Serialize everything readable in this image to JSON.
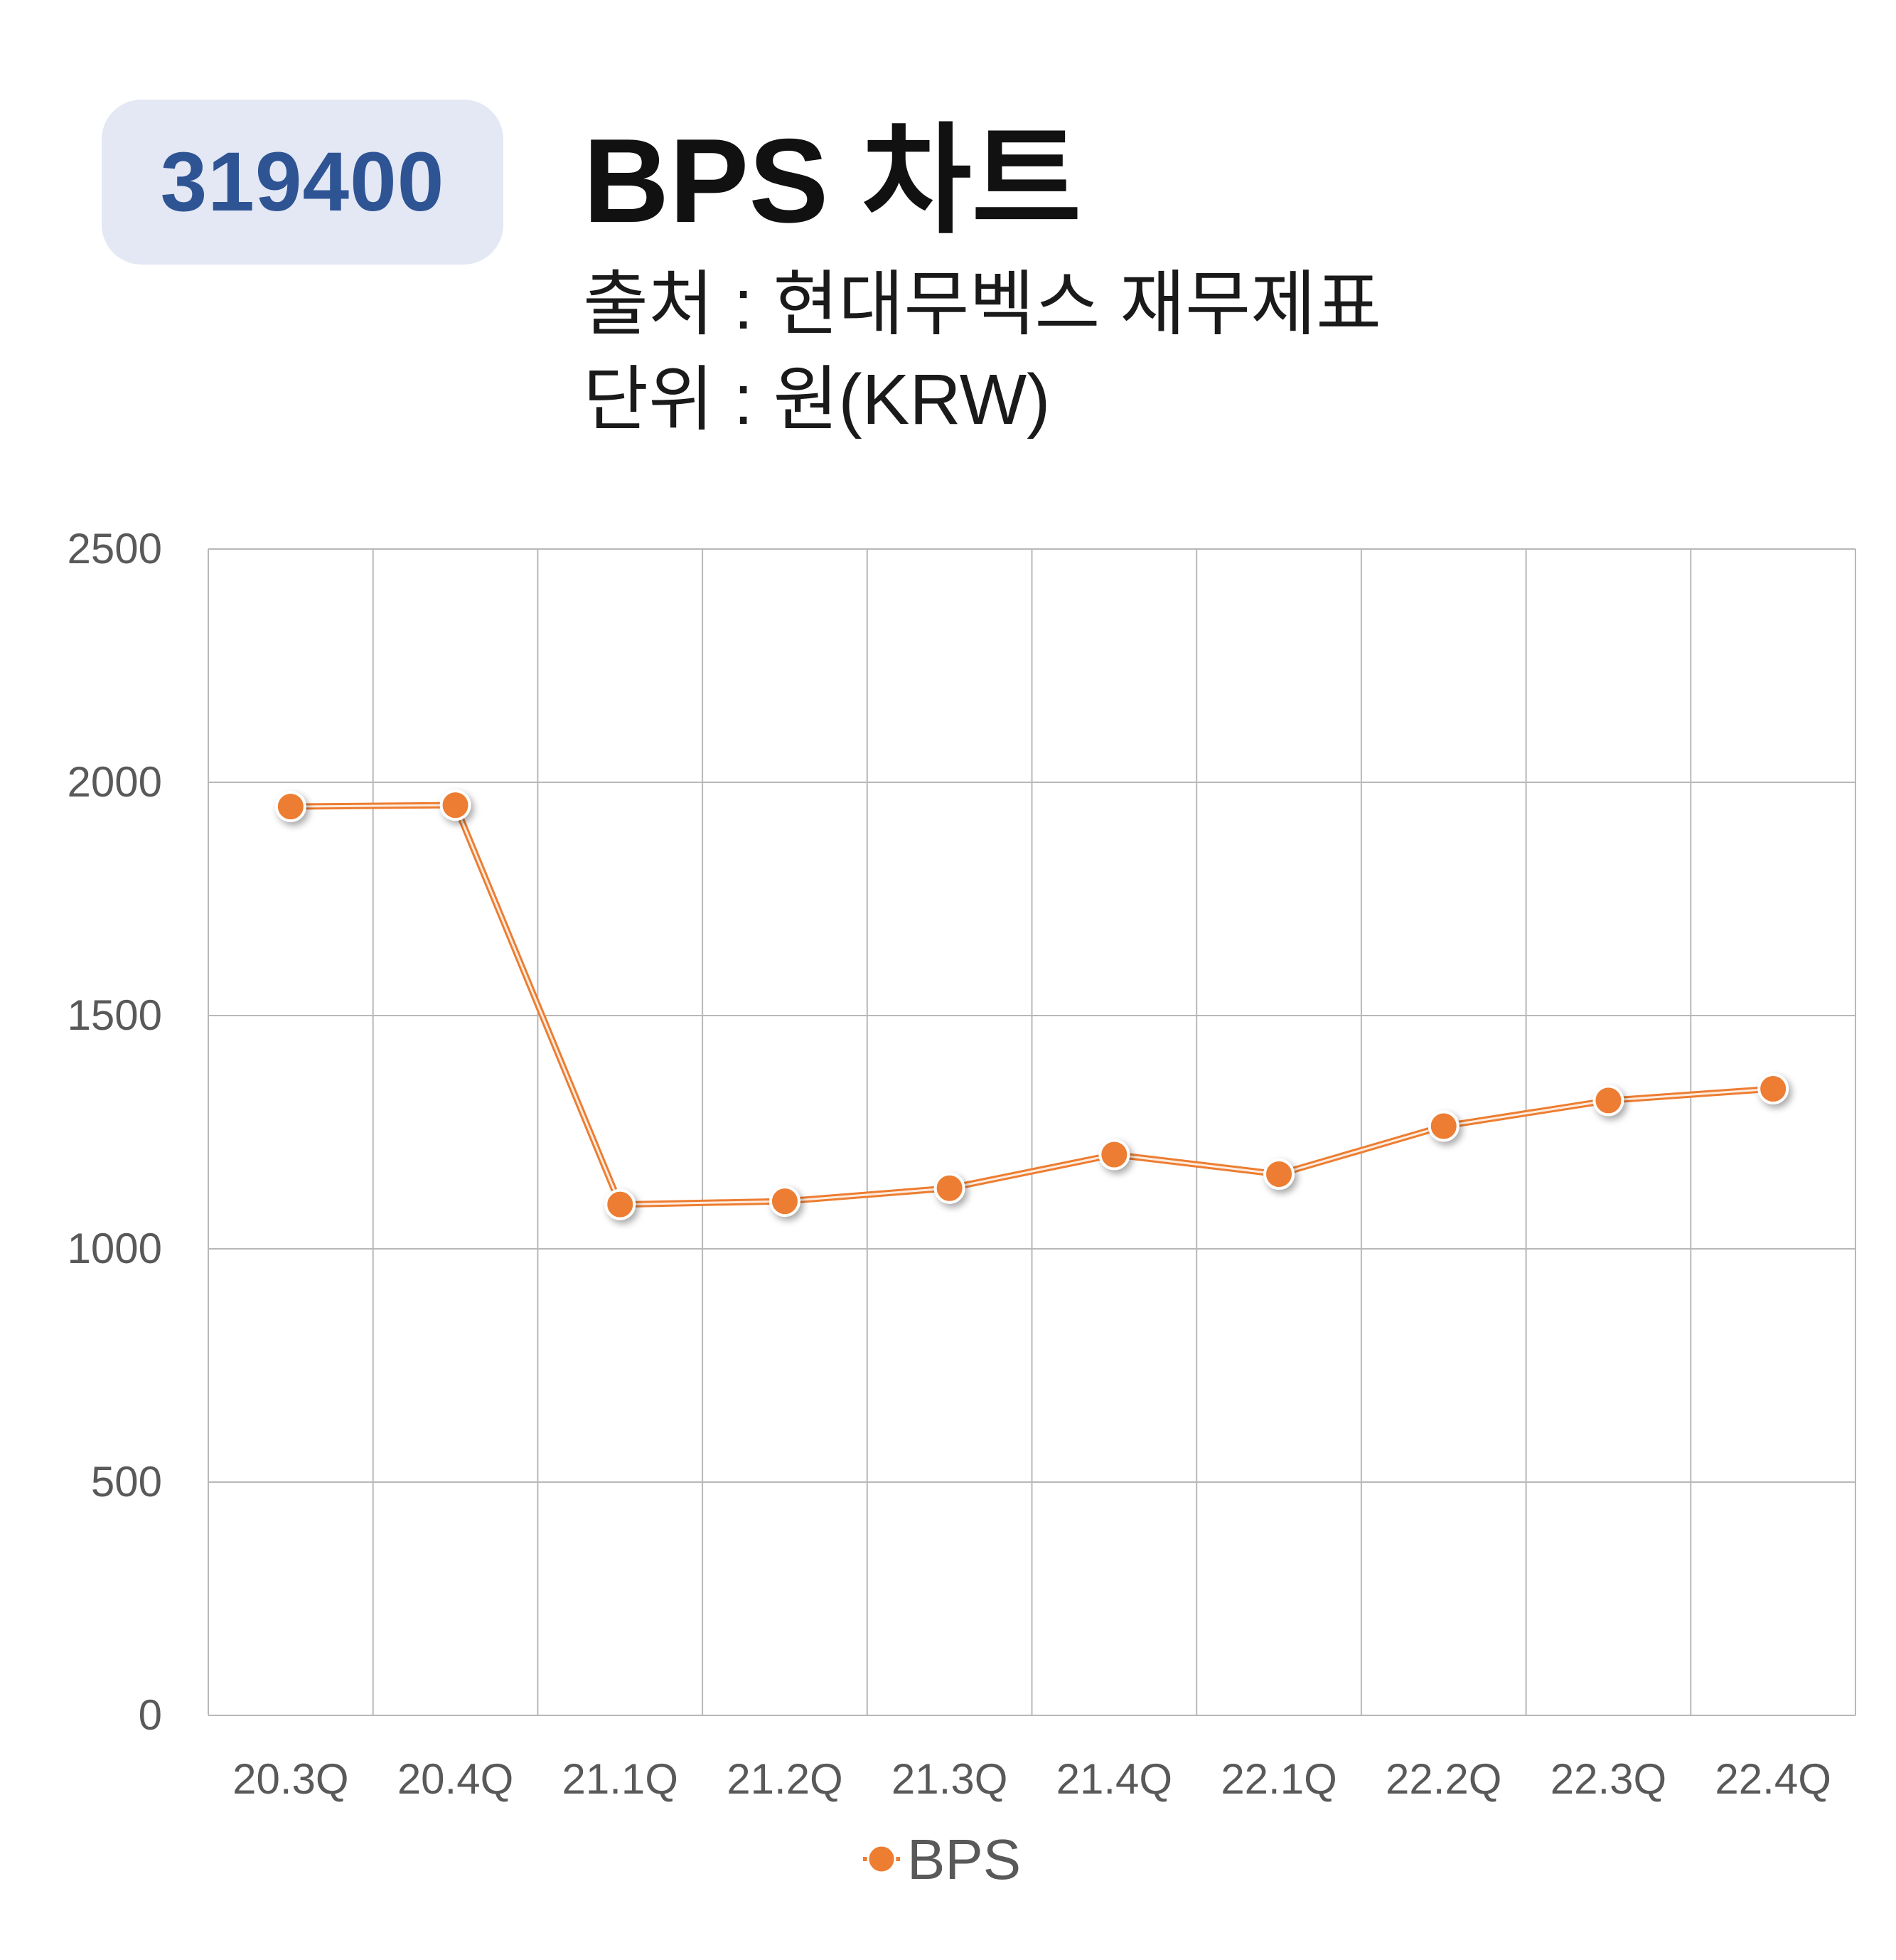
{
  "header": {
    "code": "319400",
    "title": "BPS 차트",
    "source": "출처 : 현대무벡스 재무제표",
    "unit": "단위 : 원(KRW)"
  },
  "colors": {
    "badge_bg": "#e3e8f4",
    "badge_text": "#2e5494",
    "series": "#ed7d31",
    "grid": "#b8b8b8"
  },
  "chart_data": {
    "type": "line",
    "categories": [
      "20.3Q",
      "20.4Q",
      "21.1Q",
      "21.2Q",
      "21.3Q",
      "21.4Q",
      "22.1Q",
      "22.2Q",
      "22.3Q",
      "22.4Q"
    ],
    "series": [
      {
        "name": "BPS",
        "values": [
          1948,
          1951,
          1095,
          1102,
          1130,
          1202,
          1160,
          1263,
          1318,
          1343
        ]
      }
    ],
    "ylim": [
      0,
      2500
    ],
    "yticks": [
      0,
      500,
      1000,
      1500,
      2000,
      2500
    ],
    "grid": true,
    "legend": "bottom"
  }
}
